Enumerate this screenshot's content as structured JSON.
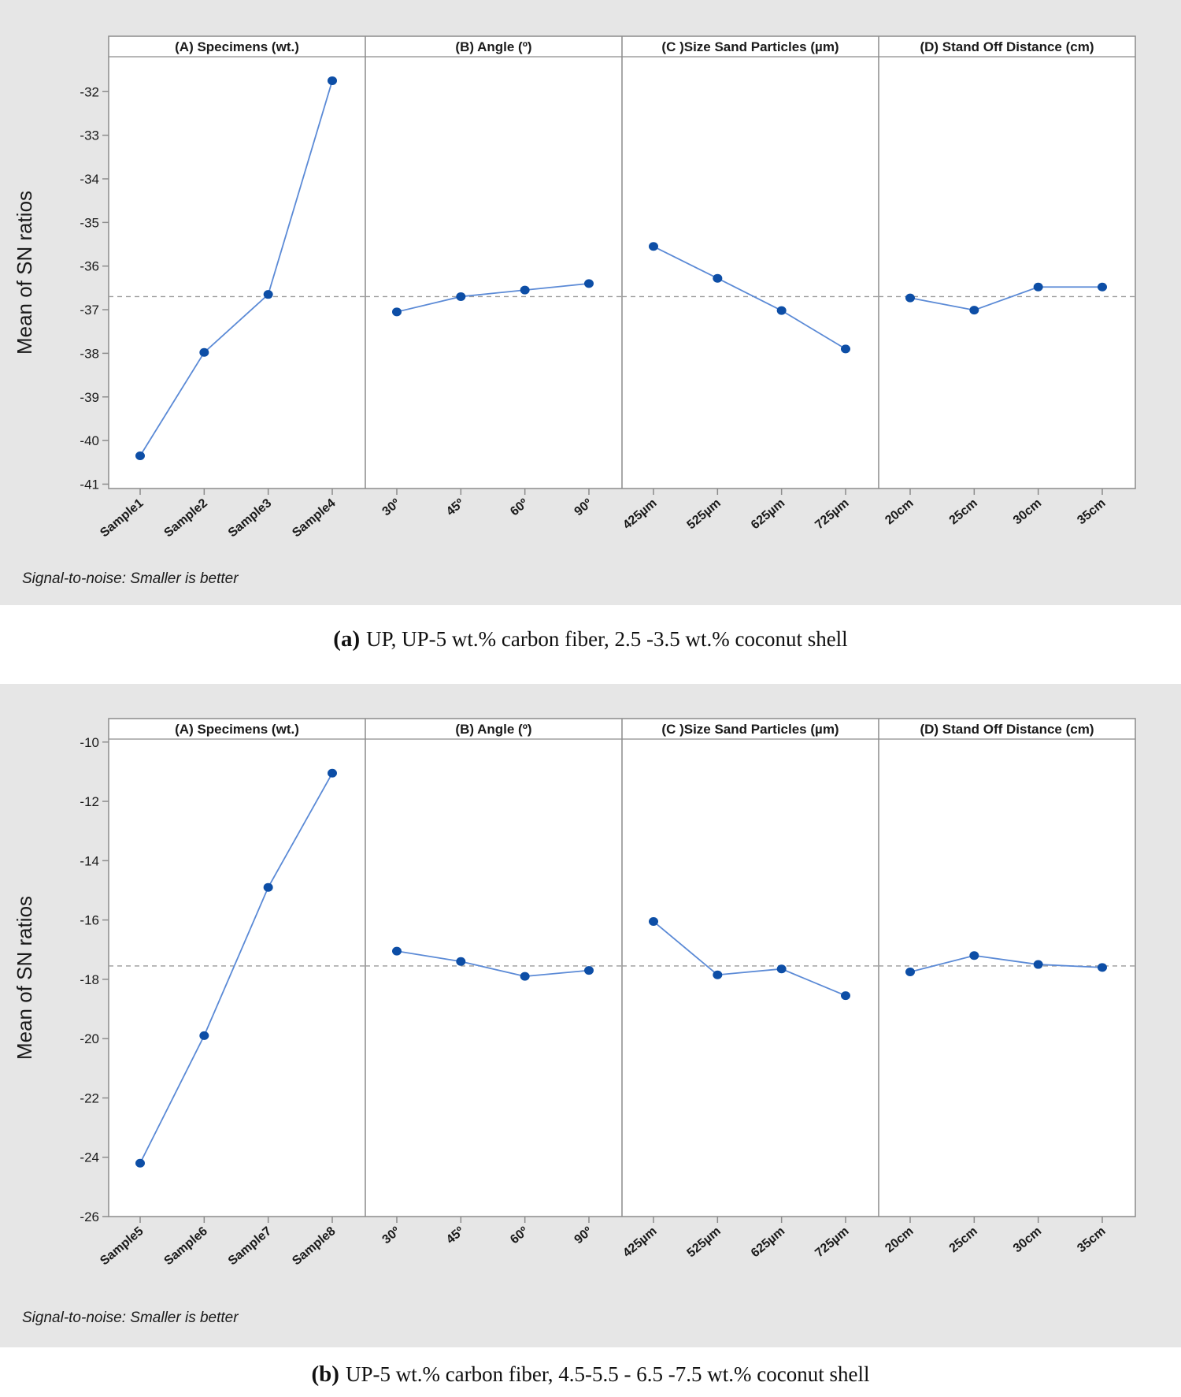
{
  "colors": {
    "background": "#e6e6e6",
    "plot_background": "#ffffff",
    "line": "#5b8ad6",
    "marker": "#0d4ea6",
    "reference_line": "#9a9a9a",
    "axis": "#8c8c8c"
  },
  "chart_data": [
    {
      "type": "line",
      "ylabel": "Mean of SN ratios",
      "note": "Signal-to-noise: Smaller is better",
      "caption_tag": "(a)",
      "caption_text": "UP, UP-5 wt.% carbon fiber, 2.5 -3.5 wt.% coconut shell",
      "ylim": [
        -41.1,
        -31.2
      ],
      "yticks": [
        -41,
        -40,
        -39,
        -38,
        -37,
        -36,
        -35,
        -34,
        -33,
        -32
      ],
      "reference_mean": -36.7,
      "panels": [
        {
          "title": "(A) Specimens (wt.)",
          "categories": [
            "Sample1",
            "Sample2",
            "Sample3",
            "Sample4"
          ],
          "values": [
            -40.35,
            -37.98,
            -36.65,
            -31.75
          ]
        },
        {
          "title": "(B) Angle (º)",
          "categories": [
            "30º",
            "45º",
            "60º",
            "90º"
          ],
          "values": [
            -37.05,
            -36.7,
            -36.55,
            -36.4
          ]
        },
        {
          "title": "(C )Size Sand Particles (µm)",
          "categories": [
            "425µm",
            "525µm",
            "625µm",
            "725µm"
          ],
          "values": [
            -35.55,
            -36.28,
            -37.02,
            -37.9
          ]
        },
        {
          "title": "(D) Stand Off Distance (cm)",
          "categories": [
            "20cm",
            "25cm",
            "30cm",
            "35cm"
          ],
          "values": [
            -36.73,
            -37.01,
            -36.48,
            -36.48
          ]
        }
      ]
    },
    {
      "type": "line",
      "ylabel": "Mean of SN ratios",
      "note": "Signal-to-noise: Smaller is better",
      "caption_tag": "(b)",
      "caption_text": "UP-5 wt.% carbon fiber, 4.5-5.5 - 6.5 -7.5 wt.% coconut shell",
      "ylim": [
        -26.0,
        -9.9
      ],
      "yticks": [
        -26,
        -24,
        -22,
        -20,
        -18,
        -16,
        -14,
        -12,
        -10
      ],
      "reference_mean": -17.55,
      "panels": [
        {
          "title": "(A) Specimens (wt.)",
          "categories": [
            "Sample5",
            "Sample6",
            "Sample7",
            "Sample8"
          ],
          "values": [
            -24.2,
            -19.9,
            -14.9,
            -11.05
          ]
        },
        {
          "title": "(B) Angle (º)",
          "categories": [
            "30º",
            "45º",
            "60º",
            "90º"
          ],
          "values": [
            -17.05,
            -17.4,
            -17.9,
            -17.7
          ]
        },
        {
          "title": "(C )Size Sand Particles (µm)",
          "categories": [
            "425µm",
            "525µm",
            "625µm",
            "725µm"
          ],
          "values": [
            -16.05,
            -17.85,
            -17.65,
            -18.55
          ]
        },
        {
          "title": "(D) Stand Off Distance (cm)",
          "categories": [
            "20cm",
            "25cm",
            "30cm",
            "35cm"
          ],
          "values": [
            -17.75,
            -17.2,
            -17.5,
            -17.6
          ]
        }
      ]
    }
  ]
}
